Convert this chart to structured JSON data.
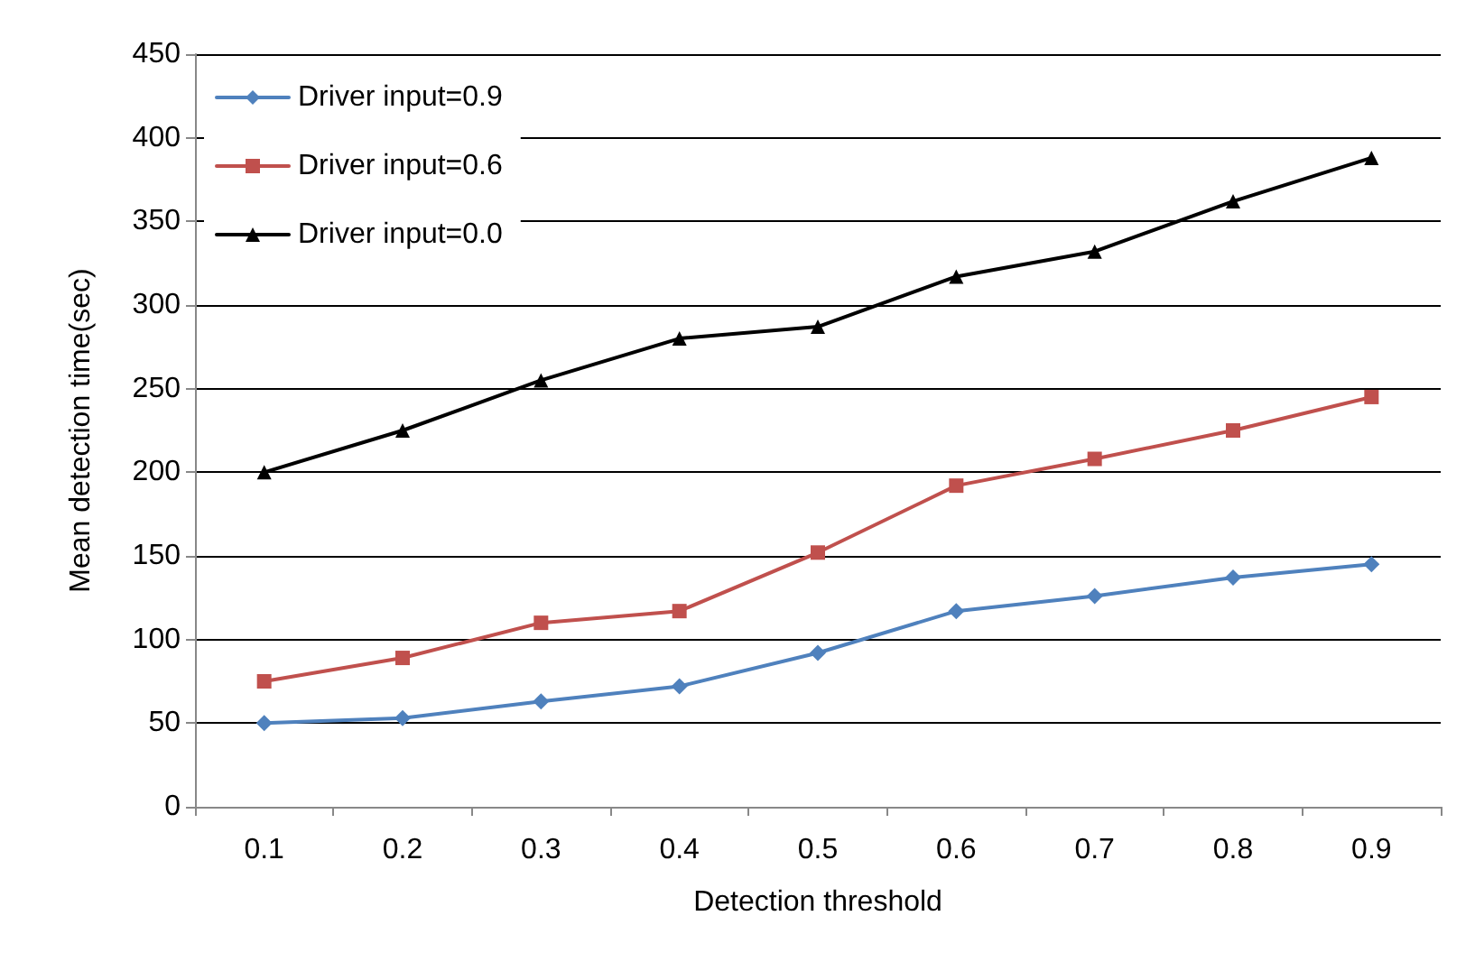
{
  "chart_data": {
    "type": "line",
    "xlabel": "Detection threshold",
    "ylabel": "Mean detection time(sec)",
    "categories": [
      "0.1",
      "0.2",
      "0.3",
      "0.4",
      "0.5",
      "0.6",
      "0.7",
      "0.8",
      "0.9"
    ],
    "series": [
      {
        "name": "Driver input=0.9",
        "color": "#4f81bd",
        "marker": "diamond",
        "values": [
          50,
          53,
          63,
          72,
          92,
          117,
          126,
          137,
          145
        ]
      },
      {
        "name": "Driver input=0.6",
        "color": "#c0504d",
        "marker": "square",
        "values": [
          75,
          89,
          110,
          117,
          152,
          192,
          208,
          225,
          245
        ]
      },
      {
        "name": "Driver input=0.0",
        "color": "#000000",
        "marker": "triangle",
        "values": [
          200,
          225,
          255,
          280,
          287,
          317,
          332,
          362,
          388
        ]
      }
    ],
    "ylim": [
      0,
      450
    ],
    "yticks": [
      0,
      50,
      100,
      150,
      200,
      250,
      300,
      350,
      400,
      450
    ],
    "grid": "y",
    "legend": "top left",
    "line_style": "solid"
  }
}
